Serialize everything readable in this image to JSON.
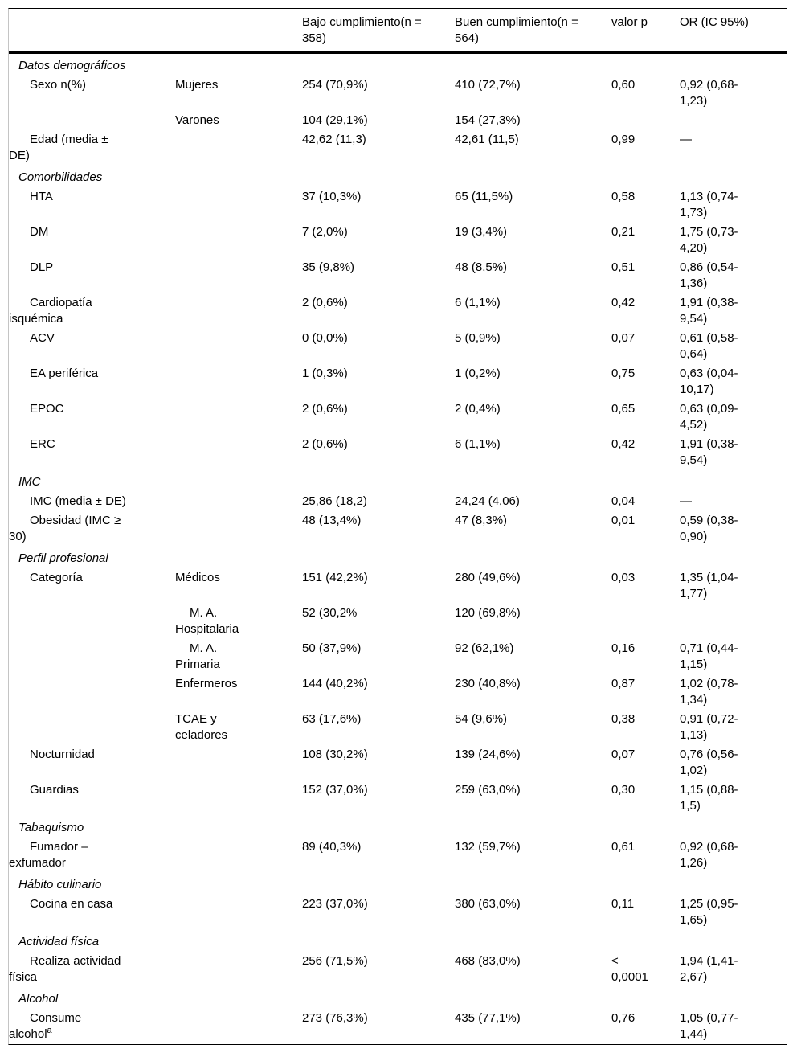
{
  "header": {
    "col_label": "",
    "col_sublabel": "",
    "col_bajo": "Bajo cumplimiento(n =\n358)",
    "col_buen": "Buen cumplimiento(n =\n564)",
    "col_p": "valor p",
    "col_or": "OR (IC 95%)"
  },
  "table": {
    "rows": [
      {
        "type": "section",
        "label": "Datos demográficos"
      },
      {
        "type": "item",
        "label": "Sexo n(%)",
        "sub": "Mujeres",
        "bajo": "254 (70,9%)",
        "buen": "410 (72,7%)",
        "p": "0,60",
        "or": "0,92 (0,68-\n1,23)"
      },
      {
        "type": "item",
        "label": "",
        "sub": "Varones",
        "bajo": "104 (29,1%)",
        "buen": "154 (27,3%)",
        "p": "",
        "or": ""
      },
      {
        "type": "item",
        "label": "Edad (media ±\nDE)",
        "sub": "",
        "bajo": "42,62 (11,3)",
        "buen": "42,61 (11,5)",
        "p": "0,99",
        "or": "—"
      },
      {
        "type": "section",
        "label": "Comorbilidades"
      },
      {
        "type": "item",
        "label": "HTA",
        "sub": "",
        "bajo": "37 (10,3%)",
        "buen": "65 (11,5%)",
        "p": "0,58",
        "or": "1,13 (0,74-\n1,73)"
      },
      {
        "type": "item",
        "label": "DM",
        "sub": "",
        "bajo": "7 (2,0%)",
        "buen": "19 (3,4%)",
        "p": "0,21",
        "or": "1,75 (0,73-\n4,20)"
      },
      {
        "type": "item",
        "label": "DLP",
        "sub": "",
        "bajo": "35 (9,8%)",
        "buen": "48 (8,5%)",
        "p": "0,51",
        "or": "0,86 (0,54-\n1,36)"
      },
      {
        "type": "item",
        "label": "Cardiopatía\nisquémica",
        "sub": "",
        "bajo": "2 (0,6%)",
        "buen": "6 (1,1%)",
        "p": "0,42",
        "or": "1,91 (0,38-\n9,54)"
      },
      {
        "type": "item",
        "label": "ACV",
        "sub": "",
        "bajo": "0 (0,0%)",
        "buen": "5 (0,9%)",
        "p": "0,07",
        "or": "0,61 (0,58-\n0,64)"
      },
      {
        "type": "item",
        "label": "EA periférica",
        "sub": "",
        "bajo": "1 (0,3%)",
        "buen": "1 (0,2%)",
        "p": "0,75",
        "or": "0,63 (0,04-\n10,17)"
      },
      {
        "type": "item",
        "label": "EPOC",
        "sub": "",
        "bajo": "2 (0,6%)",
        "buen": "2 (0,4%)",
        "p": "0,65",
        "or": "0,63 (0,09-\n4,52)"
      },
      {
        "type": "item",
        "label": "ERC",
        "sub": "",
        "bajo": "2 (0,6%)",
        "buen": "6 (1,1%)",
        "p": "0,42",
        "or": "1,91 (0,38-\n9,54)"
      },
      {
        "type": "section",
        "label": "IMC"
      },
      {
        "type": "item",
        "label": "IMC (media ± DE)",
        "sub": "",
        "bajo": "25,86 (18,2)",
        "buen": "24,24 (4,06)",
        "p": "0,04",
        "or": "—"
      },
      {
        "type": "item",
        "label": "Obesidad (IMC ≥\n30)",
        "sub": "",
        "bajo": "48 (13,4%)",
        "buen": "47 (8,3%)",
        "p": "0,01",
        "or": "0,59 (0,38-\n0,90)"
      },
      {
        "type": "section",
        "label": "Perfil profesional"
      },
      {
        "type": "item",
        "label": "Categoría",
        "sub": "Médicos",
        "bajo": "151 (42,2%)",
        "buen": "280 (49,6%)",
        "p": "0,03",
        "or": "1,35 (1,04-\n1,77)"
      },
      {
        "type": "item",
        "label": "",
        "sub": "M. A.\nHospitalaria",
        "sub_indent": true,
        "bajo": "52 (30,2%",
        "buen": "120 (69,8%)",
        "p": "",
        "or": ""
      },
      {
        "type": "item",
        "label": "",
        "sub": "M. A.\nPrimaria",
        "sub_indent": true,
        "bajo": "50 (37,9%)",
        "buen": "92 (62,1%)",
        "p": "0,16",
        "or": "0,71 (0,44-\n1,15)"
      },
      {
        "type": "item",
        "label": "",
        "sub": "Enfermeros",
        "bajo": "144 (40,2%)",
        "buen": "230 (40,8%)",
        "p": "0,87",
        "or": "1,02 (0,78-\n1,34)"
      },
      {
        "type": "item",
        "label": "",
        "sub": "TCAE y\nceladores",
        "bajo": "63 (17,6%)",
        "buen": "54 (9,6%)",
        "p": "0,38",
        "or": "0,91 (0,72-\n1,13)"
      },
      {
        "type": "item",
        "label": "Nocturnidad",
        "sub": "",
        "bajo": "108 (30,2%)",
        "buen": "139 (24,6%)",
        "p": "0,07",
        "or": "0,76 (0,56-\n1,02)"
      },
      {
        "type": "item",
        "label": "Guardias",
        "sub": "",
        "bajo": "152 (37,0%)",
        "buen": "259 (63,0%)",
        "p": "0,30",
        "or": "1,15 (0,88-\n1,5)"
      },
      {
        "type": "section",
        "label": "Tabaquismo"
      },
      {
        "type": "item",
        "label": "Fumador –\nexfumador",
        "sub": "",
        "bajo": "89 (40,3%)",
        "buen": "132 (59,7%)",
        "p": "0,61",
        "or": "0,92 (0,68-\n1,26)"
      },
      {
        "type": "section",
        "label": "Hábito culinario"
      },
      {
        "type": "item",
        "label": "Cocina en casa",
        "sub": "",
        "bajo": "223 (37,0%)",
        "buen": "380 (63,0%)",
        "p": "0,11",
        "or": "1,25 (0,95-\n1,65)"
      },
      {
        "type": "section",
        "label": "Actividad física"
      },
      {
        "type": "item",
        "label": "Realiza actividad\nfísica",
        "sub": "",
        "bajo": "256 (71,5%)",
        "buen": "468 (83,0%)",
        "p": "<\n0,0001",
        "or": "1,94 (1,41-\n2,67)"
      },
      {
        "type": "section",
        "label": "Alcohol"
      },
      {
        "type": "item",
        "label": "Consume\nalcohol",
        "label_sup": "a",
        "sub": "",
        "bajo": "273 (76,3%)",
        "buen": "435 (77,1%)",
        "p": "0,76",
        "or": "1,05 (0,77-\n1,44)"
      }
    ]
  },
  "colors": {
    "text": "#000000",
    "border_strong": "#000000",
    "border_light": "#c4c4c4",
    "background": "#ffffff"
  }
}
